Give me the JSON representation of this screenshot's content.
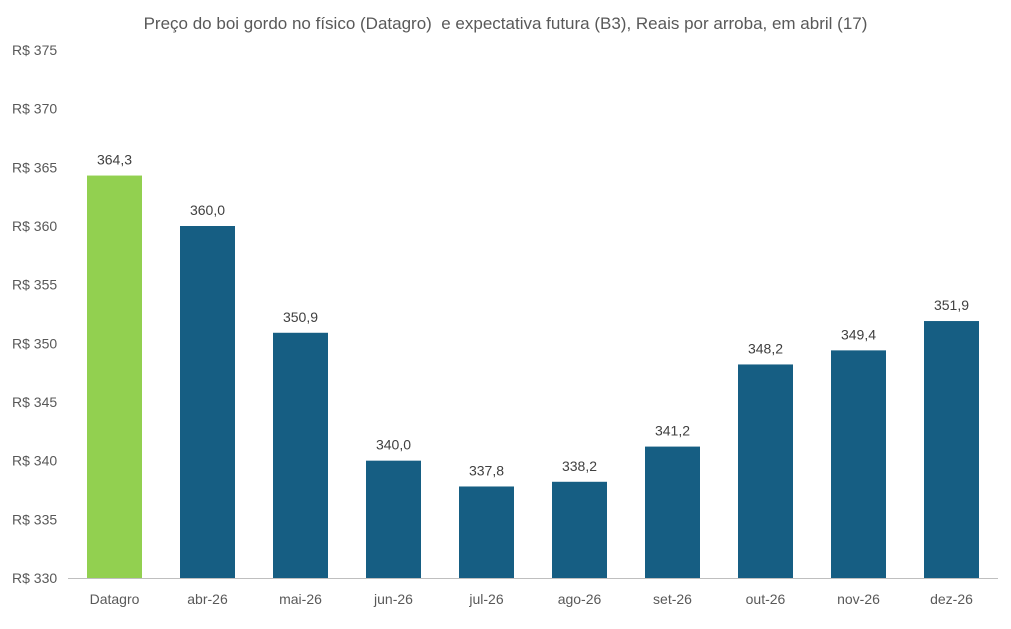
{
  "chart_data": {
    "type": "bar",
    "title": "Preço do boi gordo no físico (Datagro)  e expectativa futura (B3), Reais por arroba, em abril (17)",
    "xlabel": "",
    "ylabel": "",
    "ylim": [
      330,
      375
    ],
    "ytick_step": 5,
    "ytick_prefix": "R$ ",
    "grid": false,
    "legend": "none",
    "categories": [
      "Datagro",
      "abr-26",
      "mai-26",
      "jun-26",
      "jul-26",
      "ago-26",
      "set-26",
      "out-26",
      "nov-26",
      "dez-26"
    ],
    "values": [
      364.3,
      360.0,
      350.9,
      340.0,
      337.8,
      338.2,
      341.2,
      348.2,
      349.4,
      351.9
    ],
    "data_labels": [
      "364,3",
      "360,0",
      "350,9",
      "340,0",
      "337,8",
      "338,2",
      "341,2",
      "348,2",
      "349,4",
      "351,9"
    ],
    "colors": {
      "highlight": "#92D050",
      "bars": "#165E83",
      "axis": "#BFBFBF",
      "text": "#595959",
      "label": "#404040"
    },
    "highlight_categories": [
      "Datagro"
    ]
  }
}
